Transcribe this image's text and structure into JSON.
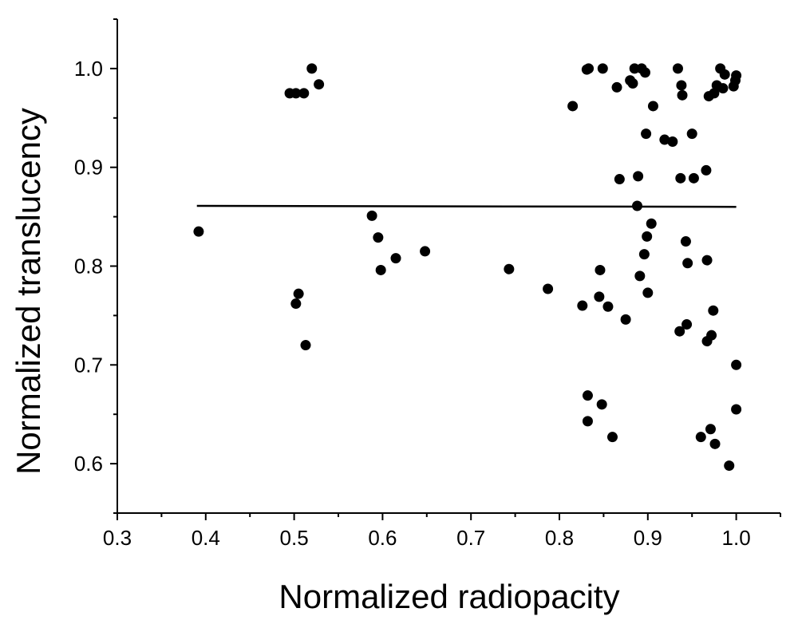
{
  "chart_data": {
    "type": "scatter",
    "title": "",
    "xlabel": "Normalized radiopacity",
    "ylabel": "Normalized translucency",
    "xlim": [
      0.3,
      1.05
    ],
    "ylim": [
      0.55,
      1.05
    ],
    "xticks": [
      0.3,
      0.4,
      0.5,
      0.6,
      0.7,
      0.8,
      0.9,
      1.0
    ],
    "xtick_labels": [
      "0.3",
      "0.4",
      "0.5",
      "0.6",
      "0.7",
      "0.8",
      "0.9",
      "1.0"
    ],
    "yticks": [
      0.6,
      0.7,
      0.8,
      0.9,
      1.0
    ],
    "ytick_labels": [
      "0.6",
      "0.7",
      "0.8",
      "0.9",
      "1.0"
    ],
    "grid": false,
    "legend": "none",
    "marker_color": "#000000",
    "fit_line": {
      "x": [
        0.39,
        1.0
      ],
      "y": [
        0.861,
        0.86
      ]
    },
    "points": [
      [
        0.392,
        0.835
      ],
      [
        0.495,
        0.975
      ],
      [
        0.502,
        0.975
      ],
      [
        0.511,
        0.975
      ],
      [
        0.52,
        1.0
      ],
      [
        0.528,
        0.984
      ],
      [
        0.502,
        0.762
      ],
      [
        0.505,
        0.772
      ],
      [
        0.513,
        0.72
      ],
      [
        0.588,
        0.851
      ],
      [
        0.595,
        0.829
      ],
      [
        0.598,
        0.796
      ],
      [
        0.615,
        0.808
      ],
      [
        0.648,
        0.815
      ],
      [
        0.743,
        0.797
      ],
      [
        0.787,
        0.777
      ],
      [
        0.815,
        0.962
      ],
      [
        0.826,
        0.76
      ],
      [
        0.831,
        0.999
      ],
      [
        0.832,
        0.669
      ],
      [
        0.832,
        0.643
      ],
      [
        0.833,
        1.0
      ],
      [
        0.845,
        0.769
      ],
      [
        0.846,
        0.796
      ],
      [
        0.848,
        0.66
      ],
      [
        0.849,
        1.0
      ],
      [
        0.855,
        0.759
      ],
      [
        0.86,
        0.627
      ],
      [
        0.865,
        0.981
      ],
      [
        0.868,
        0.888
      ],
      [
        0.875,
        0.746
      ],
      [
        0.88,
        0.988
      ],
      [
        0.883,
        0.985
      ],
      [
        0.885,
        1.0
      ],
      [
        0.888,
        0.861
      ],
      [
        0.889,
        0.891
      ],
      [
        0.891,
        0.79
      ],
      [
        0.893,
        1.0
      ],
      [
        0.896,
        0.812
      ],
      [
        0.897,
        0.996
      ],
      [
        0.898,
        0.934
      ],
      [
        0.899,
        0.83
      ],
      [
        0.9,
        0.773
      ],
      [
        0.904,
        0.843
      ],
      [
        0.906,
        0.962
      ],
      [
        0.919,
        0.928
      ],
      [
        0.928,
        0.926
      ],
      [
        0.934,
        1.0
      ],
      [
        0.936,
        0.734
      ],
      [
        0.937,
        0.889
      ],
      [
        0.938,
        0.983
      ],
      [
        0.939,
        0.973
      ],
      [
        0.943,
        0.825
      ],
      [
        0.944,
        0.741
      ],
      [
        0.945,
        0.803
      ],
      [
        0.95,
        0.934
      ],
      [
        0.952,
        0.889
      ],
      [
        0.96,
        0.627
      ],
      [
        0.966,
        0.897
      ],
      [
        0.967,
        0.806
      ],
      [
        0.967,
        0.724
      ],
      [
        0.969,
        0.972
      ],
      [
        0.971,
        0.635
      ],
      [
        0.972,
        0.73
      ],
      [
        0.974,
        0.755
      ],
      [
        0.975,
        0.975
      ],
      [
        0.976,
        0.62
      ],
      [
        0.978,
        0.983
      ],
      [
        0.982,
        1.0
      ],
      [
        0.985,
        0.98
      ],
      [
        0.987,
        0.994
      ],
      [
        0.992,
        0.598
      ],
      [
        0.997,
        0.982
      ],
      [
        0.999,
        0.988
      ],
      [
        1.0,
        0.993
      ],
      [
        1.0,
        0.7
      ],
      [
        1.0,
        0.655
      ]
    ]
  }
}
